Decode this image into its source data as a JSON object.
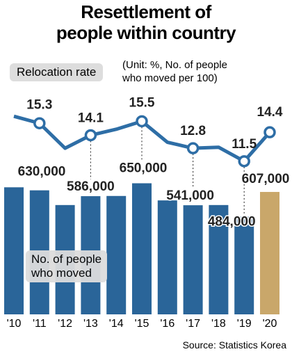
{
  "chart_data": {
    "type": "bar-line",
    "title": "Resettlement of\npeople within country",
    "annotation": "(Unit: %, No. of people\nwho moved per 100)",
    "source": "Source: Statistics Korea",
    "categories": [
      "'10",
      "'11",
      "'12",
      "'13",
      "'14",
      "'15",
      "'16",
      "'17",
      "'18",
      "'19",
      "'20"
    ],
    "series": [
      {
        "name": "No. of people\nwho moved",
        "type": "bar",
        "color": "#2a6599",
        "colors": [
          "#2a6599",
          "#2a6599",
          "#2a6599",
          "#2a6599",
          "#2a6599",
          "#2a6599",
          "#2a6599",
          "#2a6599",
          "#2a6599",
          "#2a6599",
          "#c9a76a"
        ],
        "values": [
          630000,
          615000,
          542000,
          586000,
          587000,
          650000,
          565000,
          541000,
          542000,
          484000,
          607000
        ],
        "value_labels": [
          "630,000",
          null,
          null,
          "586,000",
          null,
          "650,000",
          null,
          "541,000",
          null,
          "484,000",
          "607,000"
        ]
      },
      {
        "name": "Relocation rate",
        "type": "line",
        "axis": "y2",
        "color": "#2e6ea6",
        "values": [
          16.0,
          15.3,
          12.8,
          14.1,
          14.7,
          15.5,
          13.4,
          12.8,
          12.9,
          11.5,
          14.4
        ],
        "value_labels": [
          null,
          "15.3",
          null,
          "14.1",
          null,
          "15.5",
          null,
          "12.8",
          null,
          "11.5",
          "14.4"
        ]
      }
    ],
    "ylim": [
      0,
      700000
    ],
    "y2lim": [
      11,
      16.5
    ]
  }
}
